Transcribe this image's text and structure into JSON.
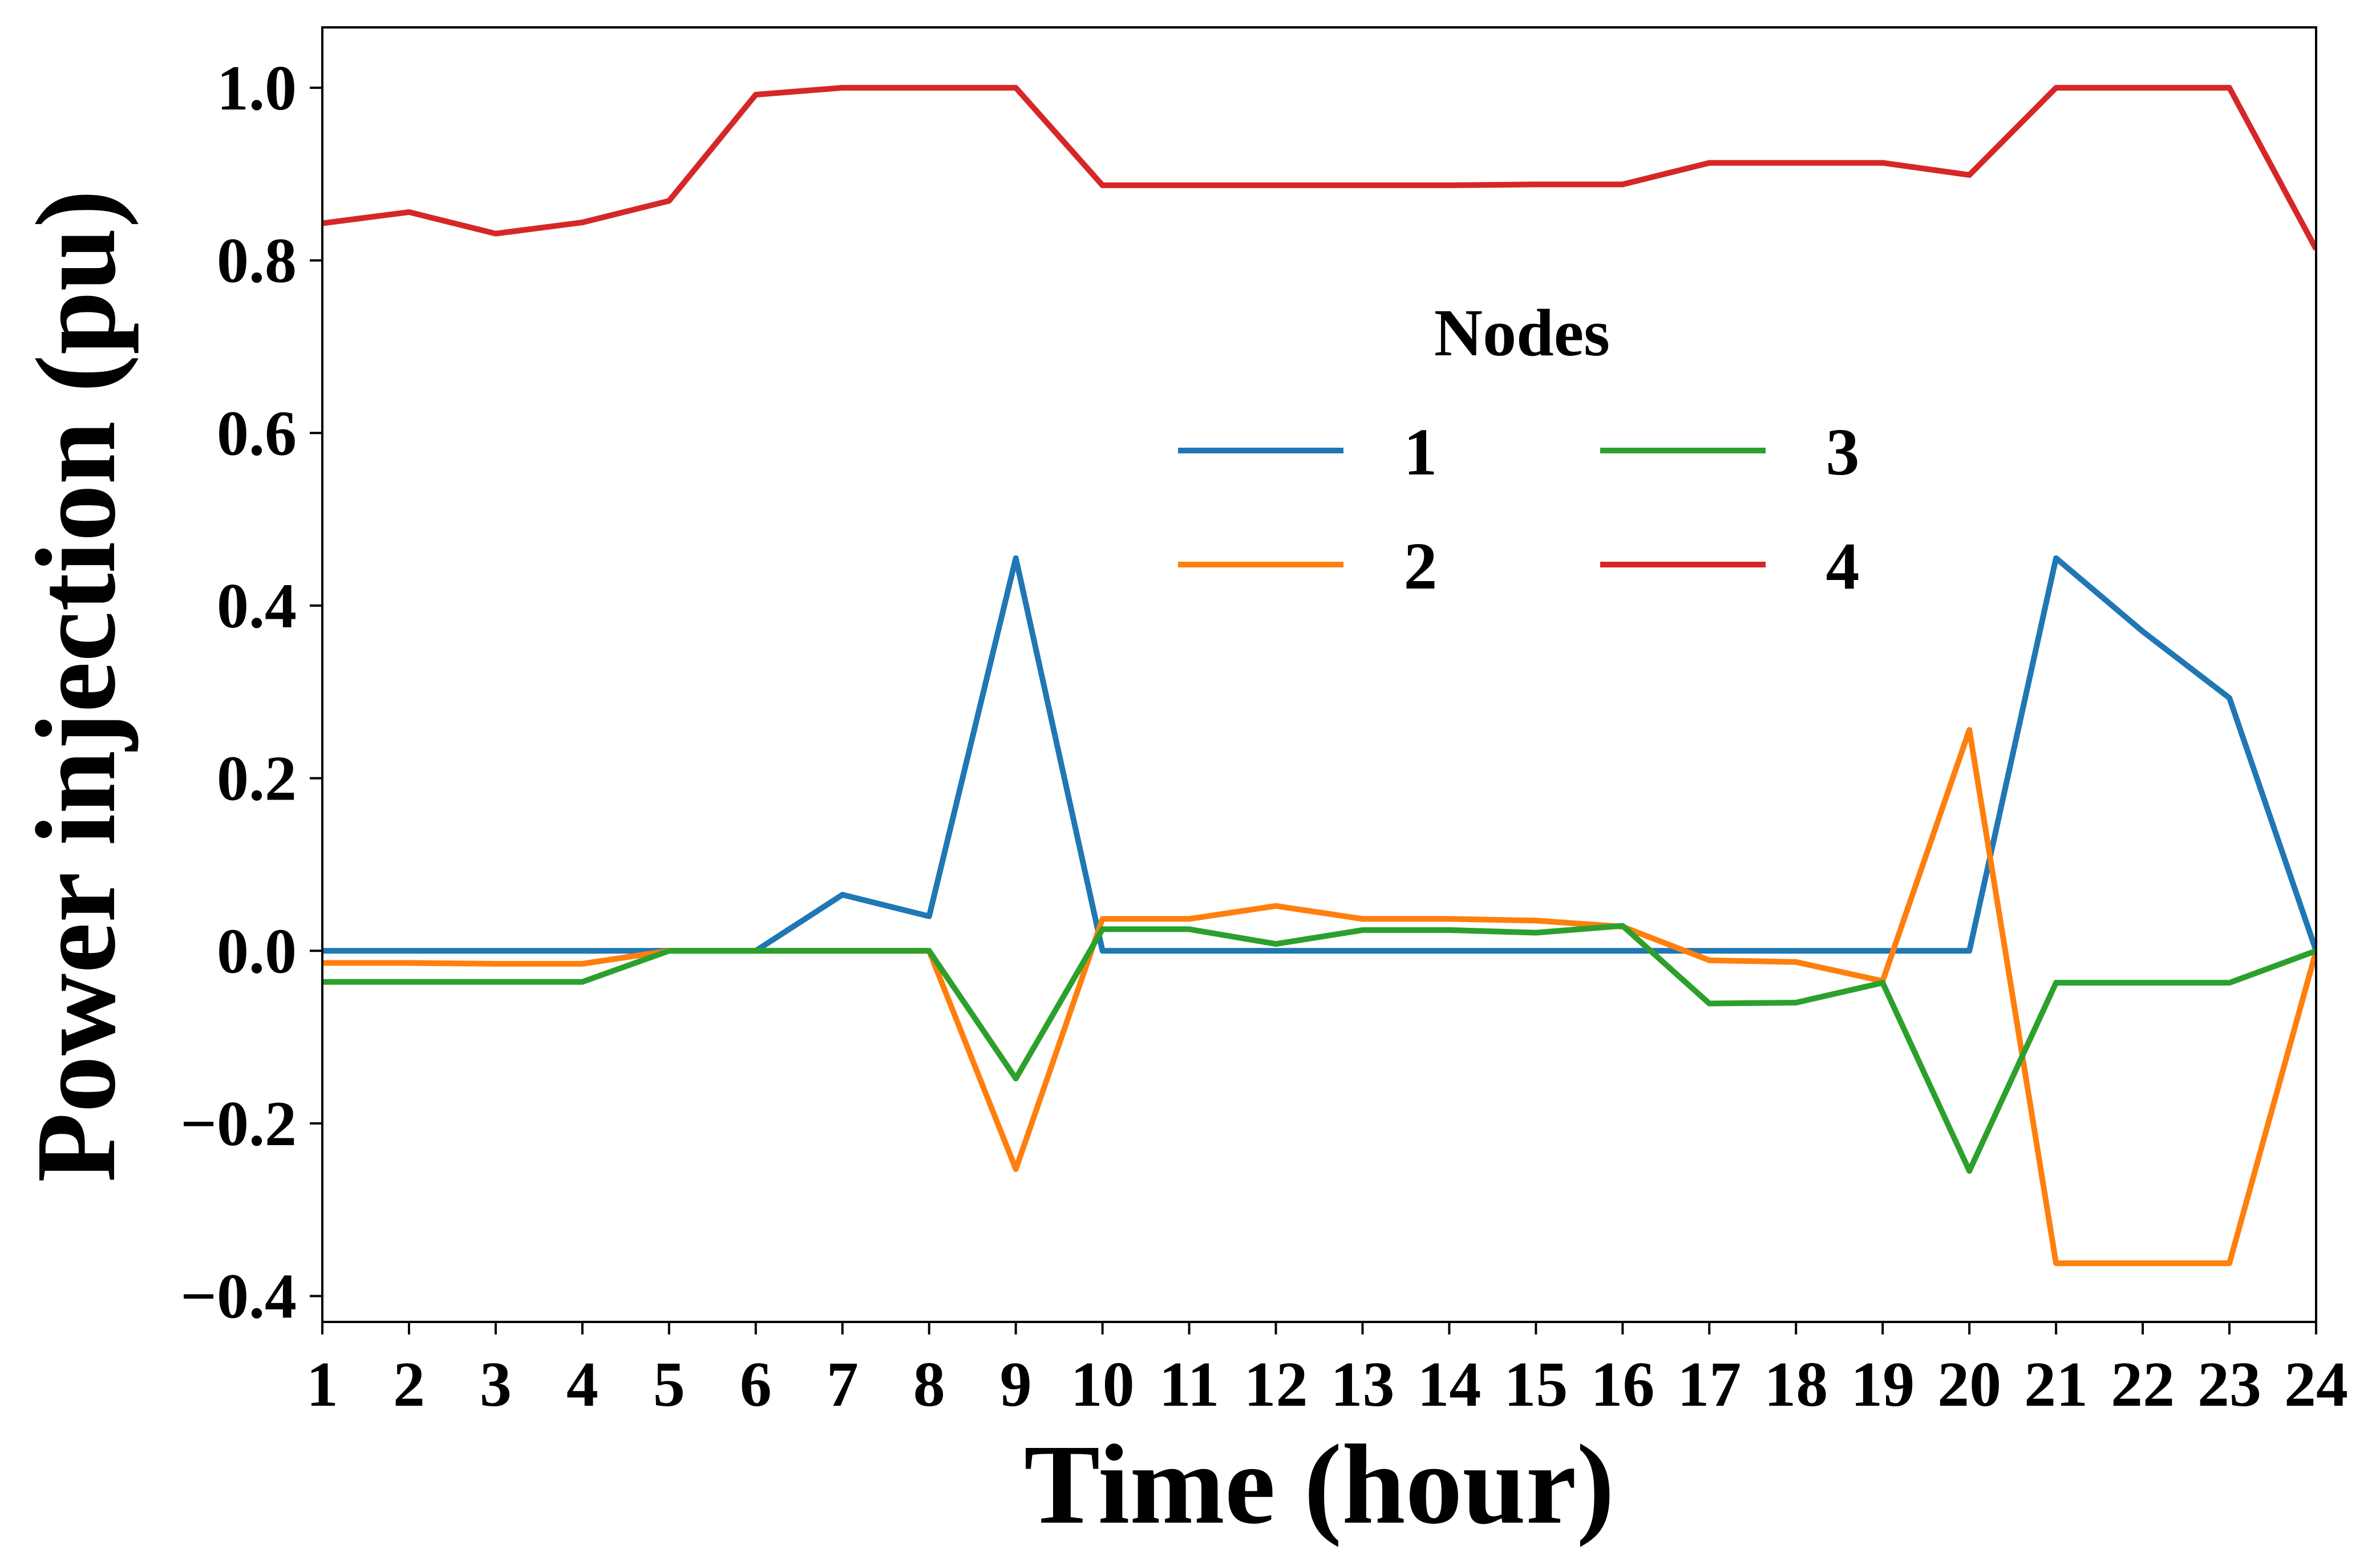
{
  "chart_data": {
    "type": "line",
    "xlabel": "Time (hour)",
    "ylabel": "Power injection (pu)",
    "x": [
      1,
      2,
      3,
      4,
      5,
      6,
      7,
      8,
      9,
      10,
      11,
      12,
      13,
      14,
      15,
      16,
      17,
      18,
      19,
      20,
      21,
      22,
      23,
      24
    ],
    "xlim": [
      1,
      24
    ],
    "ylim": [
      -0.43,
      1.07
    ],
    "yticks": [
      -0.4,
      -0.2,
      0.0,
      0.2,
      0.4,
      0.6,
      0.8,
      1.0
    ],
    "ytick_labels": [
      "−0.4",
      "−0.2",
      "0.0",
      "0.2",
      "0.4",
      "0.6",
      "0.8",
      "1.0"
    ],
    "xtick_labels": [
      "1",
      "2",
      "3",
      "4",
      "5",
      "6",
      "7",
      "8",
      "9",
      "10",
      "11",
      "12",
      "13",
      "14",
      "15",
      "16",
      "17",
      "18",
      "19",
      "20",
      "21",
      "22",
      "23",
      "24"
    ],
    "grid": false,
    "legend": {
      "title": "Nodes",
      "placement": "center-right",
      "columns": 2
    },
    "series": [
      {
        "name": "1",
        "color": "#1f77b4",
        "values": [
          0,
          0,
          0,
          0,
          0,
          0,
          0.065,
          0.04,
          0.455,
          0,
          0,
          0,
          0,
          0,
          0,
          0,
          0,
          0,
          0,
          0,
          0.455,
          0.37,
          0.293,
          0
        ]
      },
      {
        "name": "2",
        "color": "#ff7f0e",
        "values": [
          -0.014,
          -0.014,
          -0.015,
          -0.015,
          0,
          0,
          0,
          0,
          -0.253,
          0.037,
          0.037,
          0.052,
          0.037,
          0.037,
          0.035,
          0.028,
          -0.011,
          -0.013,
          -0.035,
          0.256,
          -0.362,
          -0.362,
          -0.362,
          0
        ]
      },
      {
        "name": "3",
        "color": "#2ca02c",
        "values": [
          -0.036,
          -0.036,
          -0.036,
          -0.036,
          0,
          0,
          0,
          0,
          -0.148,
          0.025,
          0.025,
          0.008,
          0.024,
          0.024,
          0.021,
          0.029,
          -0.061,
          -0.06,
          -0.037,
          -0.255,
          -0.037,
          -0.037,
          -0.037,
          0
        ]
      },
      {
        "name": "4",
        "color": "#d62728",
        "values": [
          0.843,
          0.856,
          0.831,
          0.844,
          0.869,
          0.992,
          1.0,
          1.0,
          1.0,
          0.887,
          0.887,
          0.887,
          0.887,
          0.887,
          0.888,
          0.888,
          0.913,
          0.913,
          0.913,
          0.899,
          1.0,
          1.0,
          1.0,
          0.813
        ]
      }
    ]
  }
}
